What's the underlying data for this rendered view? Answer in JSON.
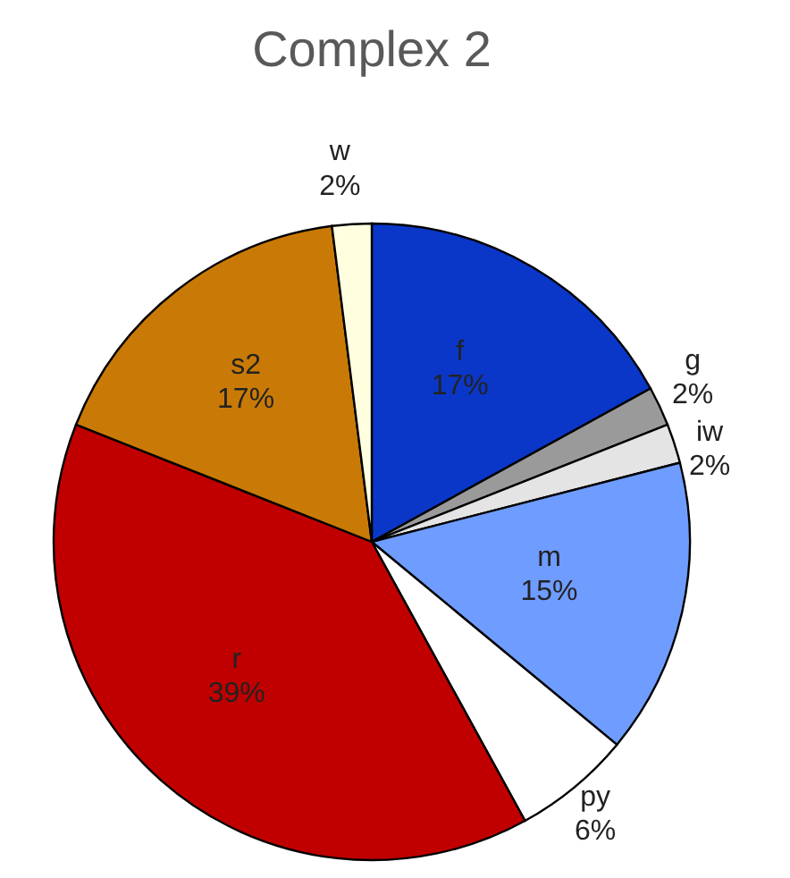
{
  "chart_data": {
    "type": "pie",
    "title": "Complex 2",
    "categories": [
      "f",
      "g",
      "iw",
      "m",
      "py",
      "r",
      "s2",
      "w"
    ],
    "values": [
      17,
      2,
      2,
      15,
      6,
      39,
      17,
      2
    ],
    "value_labels": [
      "17%",
      "2%",
      "2%",
      "15%",
      "6%",
      "39%",
      "17%",
      "2%"
    ],
    "colors": [
      "#0a37c8",
      "#9a9a9a",
      "#e4e4e4",
      "#6f9cff",
      "#ffffff",
      "#c00000",
      "#c97a06",
      "#ffffe0"
    ],
    "legend": false
  }
}
